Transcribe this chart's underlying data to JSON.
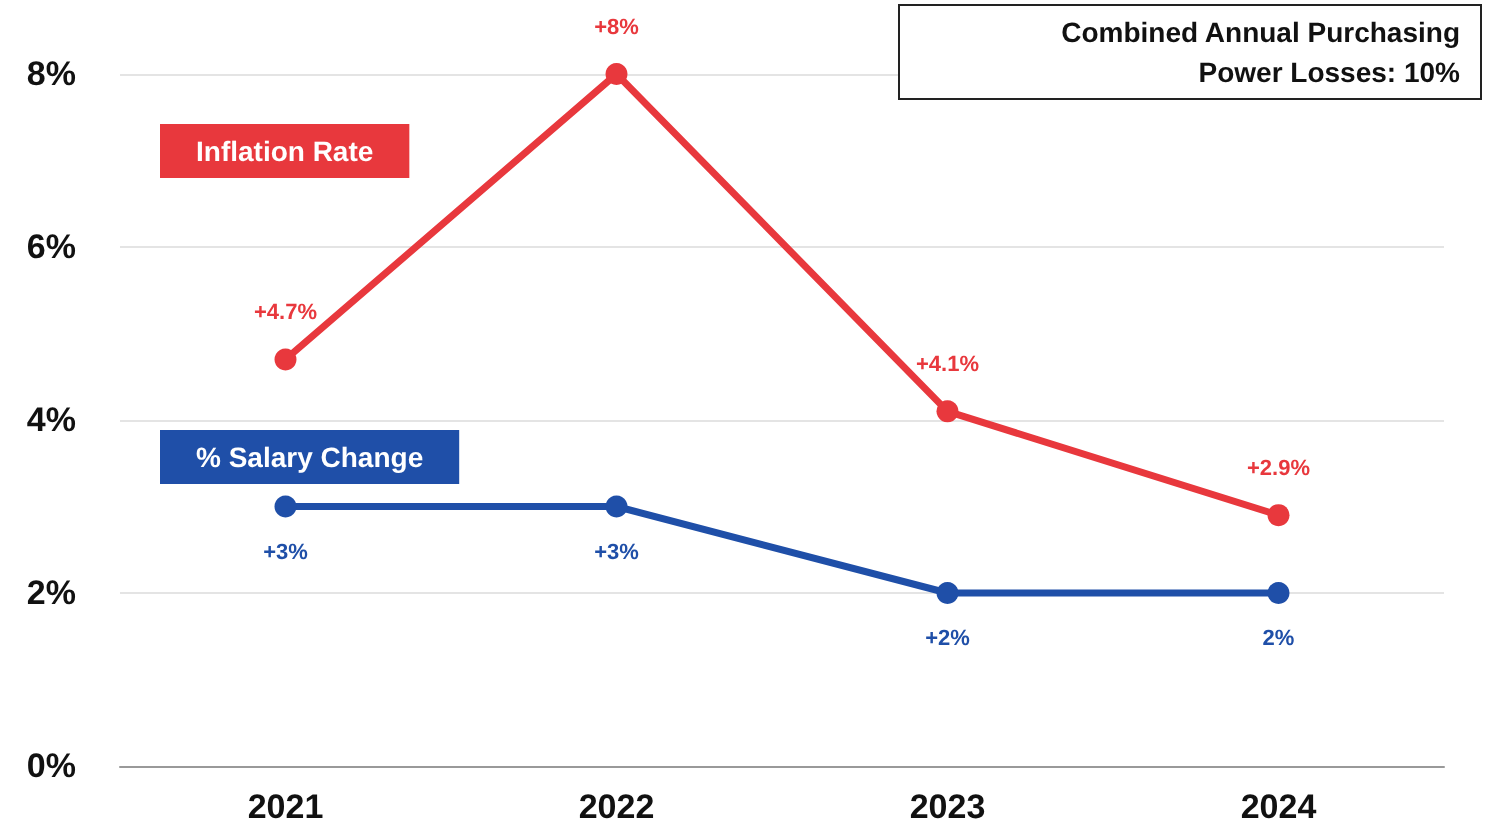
{
  "chart_data": {
    "type": "line",
    "categories": [
      "2021",
      "2022",
      "2023",
      "2024"
    ],
    "series": [
      {
        "name": "Inflation Rate",
        "color": "#e8383d",
        "values": [
          4.7,
          8,
          4.1,
          2.9
        ],
        "value_labels": [
          "+4.7%",
          "+8%",
          "+4.1%",
          "+2.9%"
        ]
      },
      {
        "name": "% Salary Change",
        "color": "#1f4fa8",
        "values": [
          3,
          3,
          2,
          2
        ],
        "value_labels": [
          "+3%",
          "+3%",
          "+2%",
          "2%"
        ]
      }
    ],
    "ylim": [
      0,
      8
    ],
    "yticks": [
      {
        "value": 0,
        "label": "0%"
      },
      {
        "value": 2,
        "label": "2%"
      },
      {
        "value": 4,
        "label": "4%"
      },
      {
        "value": 6,
        "label": "6%"
      },
      {
        "value": 8,
        "label": "8%"
      }
    ],
    "grid": "y",
    "marker": "circle",
    "line_style": "solid",
    "annotations": [
      "Combined Annual Purchasing Power Losses: 10%"
    ]
  }
}
